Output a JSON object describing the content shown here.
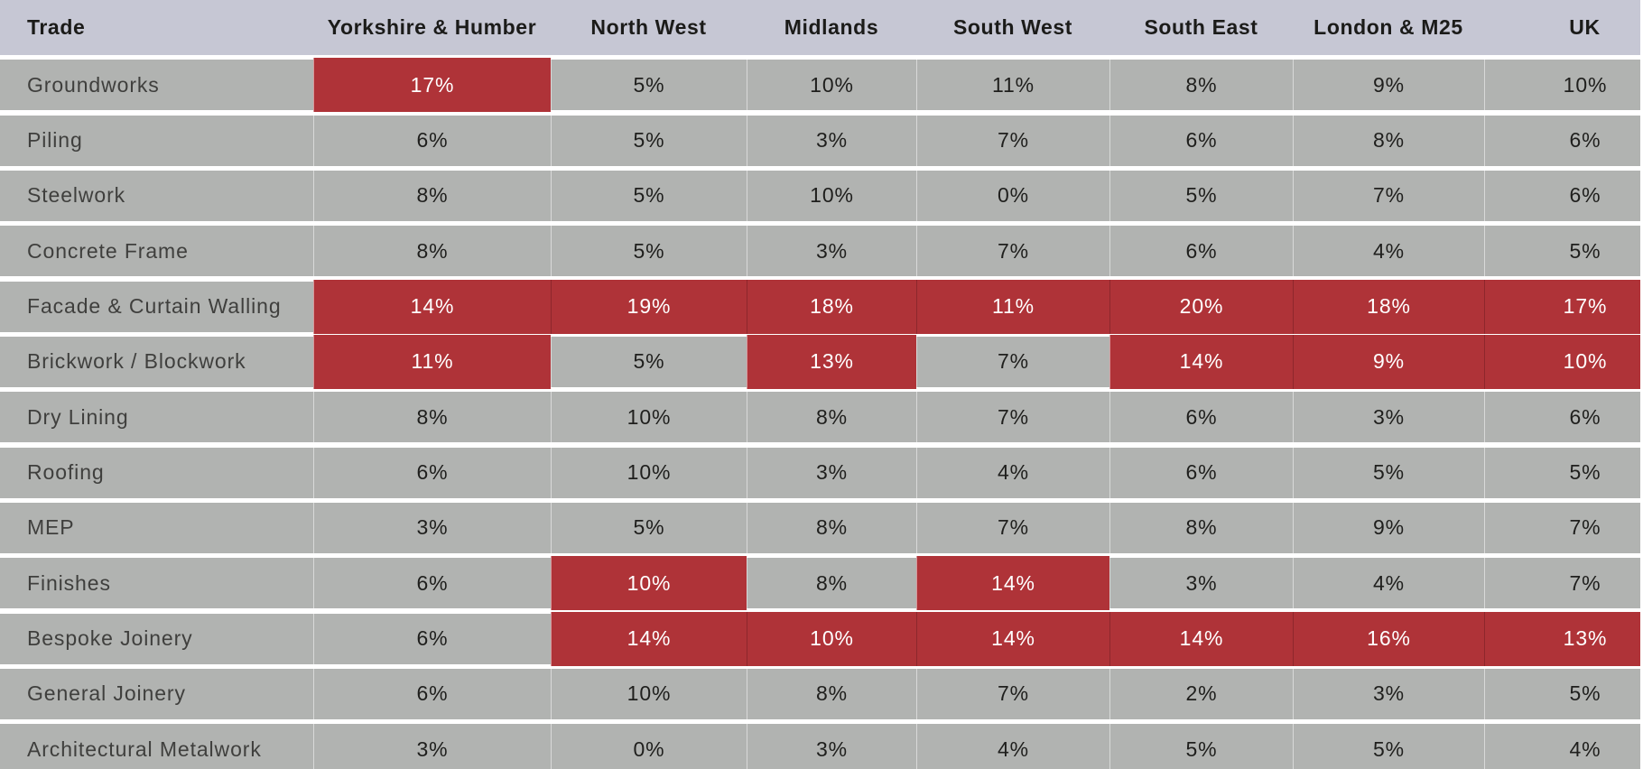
{
  "table": {
    "columns": [
      "Trade",
      "Yorkshire & Humber",
      "North West",
      "Midlands",
      "South West",
      "South East",
      "London & M25",
      "UK"
    ],
    "rows": [
      {
        "trade": "Groundworks",
        "values": [
          "17%",
          "5%",
          "10%",
          "11%",
          "8%",
          "9%",
          "10%"
        ],
        "highlights": [
          true,
          false,
          false,
          false,
          false,
          false,
          false
        ]
      },
      {
        "trade": "Piling",
        "values": [
          "6%",
          "5%",
          "3%",
          "7%",
          "6%",
          "8%",
          "6%"
        ],
        "highlights": [
          false,
          false,
          false,
          false,
          false,
          false,
          false
        ]
      },
      {
        "trade": "Steelwork",
        "values": [
          "8%",
          "5%",
          "10%",
          "0%",
          "5%",
          "7%",
          "6%"
        ],
        "highlights": [
          false,
          false,
          false,
          false,
          false,
          false,
          false
        ]
      },
      {
        "trade": "Concrete Frame",
        "values": [
          "8%",
          "5%",
          "3%",
          "7%",
          "6%",
          "4%",
          "5%"
        ],
        "highlights": [
          false,
          false,
          false,
          false,
          false,
          false,
          false
        ]
      },
      {
        "trade": "Facade & Curtain Walling",
        "values": [
          "14%",
          "19%",
          "18%",
          "11%",
          "20%",
          "18%",
          "17%"
        ],
        "highlights": [
          true,
          true,
          true,
          true,
          true,
          true,
          true
        ]
      },
      {
        "trade": "Brickwork / Blockwork",
        "values": [
          "11%",
          "5%",
          "13%",
          "7%",
          "14%",
          "9%",
          "10%"
        ],
        "highlights": [
          true,
          false,
          true,
          false,
          true,
          true,
          true
        ]
      },
      {
        "trade": "Dry Lining",
        "values": [
          "8%",
          "10%",
          "8%",
          "7%",
          "6%",
          "3%",
          "6%"
        ],
        "highlights": [
          false,
          false,
          false,
          false,
          false,
          false,
          false
        ]
      },
      {
        "trade": "Roofing",
        "values": [
          "6%",
          "10%",
          "3%",
          "4%",
          "6%",
          "5%",
          "5%"
        ],
        "highlights": [
          false,
          false,
          false,
          false,
          false,
          false,
          false
        ]
      },
      {
        "trade": "MEP",
        "values": [
          "3%",
          "5%",
          "8%",
          "7%",
          "8%",
          "9%",
          "7%"
        ],
        "highlights": [
          false,
          false,
          false,
          false,
          false,
          false,
          false
        ]
      },
      {
        "trade": "Finishes",
        "values": [
          "6%",
          "10%",
          "8%",
          "14%",
          "3%",
          "4%",
          "7%"
        ],
        "highlights": [
          false,
          true,
          false,
          true,
          false,
          false,
          false
        ]
      },
      {
        "trade": "Bespoke Joinery",
        "values": [
          "6%",
          "14%",
          "10%",
          "14%",
          "14%",
          "16%",
          "13%"
        ],
        "highlights": [
          false,
          true,
          true,
          true,
          true,
          true,
          true
        ]
      },
      {
        "trade": "General Joinery",
        "values": [
          "6%",
          "10%",
          "8%",
          "7%",
          "2%",
          "3%",
          "5%"
        ],
        "highlights": [
          false,
          false,
          false,
          false,
          false,
          false,
          false
        ]
      },
      {
        "trade": "Architectural Metalwork",
        "values": [
          "3%",
          "0%",
          "3%",
          "4%",
          "5%",
          "5%",
          "4%"
        ],
        "highlights": [
          false,
          false,
          false,
          false,
          false,
          false,
          false
        ]
      }
    ],
    "colors": {
      "highlight": "#af3338",
      "row_bg": "#b1b3b1",
      "header_bg": "#c6c7d4",
      "header_text": "#1b1b19",
      "value_text": "#1f1f1d",
      "highlight_text": "#ffffff"
    }
  },
  "chart_data": {
    "type": "table",
    "title": "",
    "row_header": "Trade",
    "categories": [
      "Yorkshire & Humber",
      "North West",
      "Midlands",
      "South West",
      "South East",
      "London & M25",
      "UK"
    ],
    "series": [
      {
        "name": "Groundworks",
        "values": [
          17,
          5,
          10,
          11,
          8,
          9,
          10
        ],
        "highlighted": [
          true,
          false,
          false,
          false,
          false,
          false,
          false
        ]
      },
      {
        "name": "Piling",
        "values": [
          6,
          5,
          3,
          7,
          6,
          8,
          6
        ],
        "highlighted": [
          false,
          false,
          false,
          false,
          false,
          false,
          false
        ]
      },
      {
        "name": "Steelwork",
        "values": [
          8,
          5,
          10,
          0,
          5,
          7,
          6
        ],
        "highlighted": [
          false,
          false,
          false,
          false,
          false,
          false,
          false
        ]
      },
      {
        "name": "Concrete Frame",
        "values": [
          8,
          5,
          3,
          7,
          6,
          4,
          5
        ],
        "highlighted": [
          false,
          false,
          false,
          false,
          false,
          false,
          false
        ]
      },
      {
        "name": "Facade & Curtain Walling",
        "values": [
          14,
          19,
          18,
          11,
          20,
          18,
          17
        ],
        "highlighted": [
          true,
          true,
          true,
          true,
          true,
          true,
          true
        ]
      },
      {
        "name": "Brickwork / Blockwork",
        "values": [
          11,
          5,
          13,
          7,
          14,
          9,
          10
        ],
        "highlighted": [
          true,
          false,
          true,
          false,
          true,
          true,
          true
        ]
      },
      {
        "name": "Dry Lining",
        "values": [
          8,
          10,
          8,
          7,
          6,
          3,
          6
        ],
        "highlighted": [
          false,
          false,
          false,
          false,
          false,
          false,
          false
        ]
      },
      {
        "name": "Roofing",
        "values": [
          6,
          10,
          3,
          4,
          6,
          5,
          5
        ],
        "highlighted": [
          false,
          false,
          false,
          false,
          false,
          false,
          false
        ]
      },
      {
        "name": "MEP",
        "values": [
          3,
          5,
          8,
          7,
          8,
          9,
          7
        ],
        "highlighted": [
          false,
          false,
          false,
          false,
          false,
          false,
          false
        ]
      },
      {
        "name": "Finishes",
        "values": [
          6,
          10,
          8,
          14,
          3,
          4,
          7
        ],
        "highlighted": [
          false,
          true,
          false,
          true,
          false,
          false,
          false
        ]
      },
      {
        "name": "Bespoke Joinery",
        "values": [
          6,
          14,
          10,
          14,
          14,
          16,
          13
        ],
        "highlighted": [
          false,
          true,
          true,
          true,
          true,
          true,
          true
        ]
      },
      {
        "name": "General Joinery",
        "values": [
          6,
          10,
          8,
          7,
          2,
          3,
          5
        ],
        "highlighted": [
          false,
          false,
          false,
          false,
          false,
          false,
          false
        ]
      },
      {
        "name": "Architectural Metalwork",
        "values": [
          3,
          0,
          3,
          4,
          5,
          5,
          4
        ],
        "highlighted": [
          false,
          false,
          false,
          false,
          false,
          false,
          false
        ]
      }
    ],
    "value_unit": "%",
    "highlight_color": "#af3338"
  }
}
